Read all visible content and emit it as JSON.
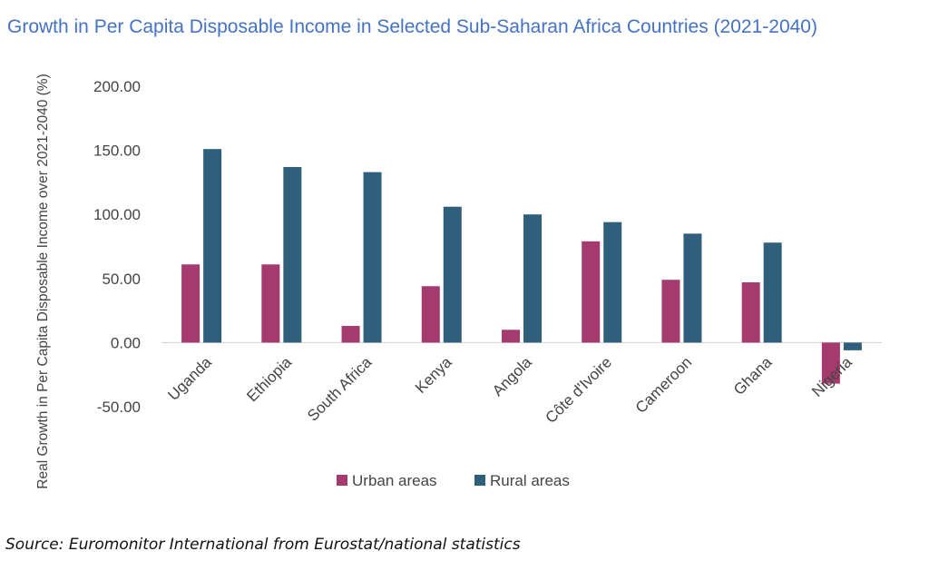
{
  "title": "Growth in Per Capita Disposable Income in Selected Sub-Saharan Africa Countries (2021-2040)",
  "source": "Source: Euromonitor International from Eurostat/national statistics",
  "colors": {
    "urban": "#a43a6d",
    "rural": "#2f5f7a",
    "axis": "#d0d0d0",
    "text": "#444444"
  },
  "chart_data": {
    "type": "bar",
    "ylabel": "Real Growth in Per Capita Disposable Income over 2021-2040 (%)",
    "xlabel": "",
    "ylim": [
      -50,
      200
    ],
    "yticks": [
      200,
      150,
      100,
      50,
      0,
      -50
    ],
    "ytick_labels": [
      "200.00",
      "150.00",
      "100.00",
      "50.00",
      "0.00",
      "-50.00"
    ],
    "grid": false,
    "legend_position": "bottom",
    "categories": [
      "Uganda",
      "Ethiopia",
      "South Africa",
      "Kenya",
      "Angola",
      "Côte d'Ivoire",
      "Cameroon",
      "Ghana",
      "Nigeria"
    ],
    "series": [
      {
        "name": "Urban areas",
        "values": [
          61,
          61,
          13,
          44,
          10,
          79,
          49,
          47,
          -32
        ]
      },
      {
        "name": "Rural areas",
        "values": [
          151,
          137,
          133,
          106,
          100,
          94,
          85,
          78,
          -6
        ]
      }
    ]
  }
}
